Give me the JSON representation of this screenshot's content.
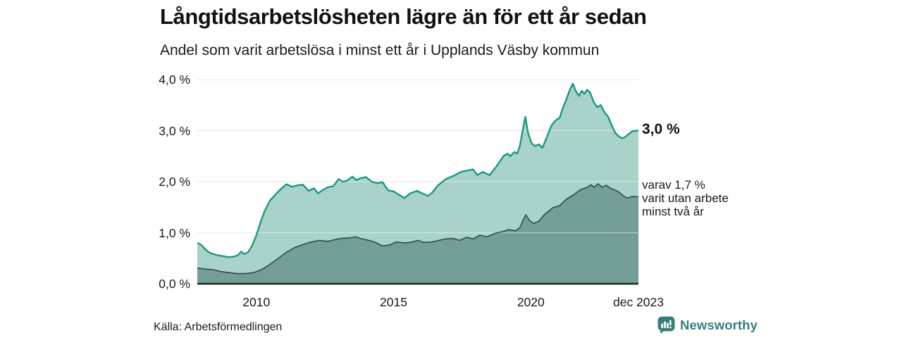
{
  "header": {
    "title": "Långtidsarbetslösheten lägre än för ett år sedan",
    "subtitle": "Andel som varit arbetslösa i minst ett år i Upplands Väsby kommun"
  },
  "footer": {
    "source": "Källa: Arbetsförmedlingen",
    "brand": "Newsworthy",
    "brand_color": "#35807a"
  },
  "icons": {
    "newsworthy_logo": "speech-bubble-bar-chart-icon"
  },
  "chart_data": {
    "type": "area",
    "title": "Långtidsarbetslösheten lägre än för ett år sedan",
    "subtitle": "Andel som varit arbetslösa i minst ett år i Upplands Väsby kommun",
    "unit": "%",
    "grid": true,
    "x_axis": {
      "range": [
        2007.85,
        2023.92
      ],
      "ticks": [
        {
          "t": 2010,
          "label": "2010"
        },
        {
          "t": 2015,
          "label": "2015"
        },
        {
          "t": 2020,
          "label": "2020"
        },
        {
          "t": 2023.92,
          "label": "dec 2023"
        }
      ]
    },
    "y_axis": {
      "range": [
        0,
        4
      ],
      "ticks": [
        {
          "v": 0,
          "label": "0,0 %"
        },
        {
          "v": 1,
          "label": "1,0 %"
        },
        {
          "v": 2,
          "label": "2,0 %"
        },
        {
          "v": 3,
          "label": "3,0 %"
        },
        {
          "v": 4,
          "label": "4,0 %"
        }
      ]
    },
    "colors": {
      "grid_under": "#dcdcdc",
      "grid_over": "rgba(255,255,255,0.45)",
      "baseline": "#1d2724"
    },
    "series": [
      {
        "id": "unemployed_min_one_year_total",
        "line_color": "#18997f",
        "fill_color": "#a9d2cb",
        "line_width": 2.4,
        "points": [
          [
            2007.85,
            0.8
          ],
          [
            2008.0,
            0.76
          ],
          [
            2008.17,
            0.66
          ],
          [
            2008.33,
            0.6
          ],
          [
            2008.58,
            0.56
          ],
          [
            2008.83,
            0.54
          ],
          [
            2009.0,
            0.52
          ],
          [
            2009.17,
            0.53
          ],
          [
            2009.33,
            0.56
          ],
          [
            2009.45,
            0.63
          ],
          [
            2009.55,
            0.58
          ],
          [
            2009.7,
            0.62
          ],
          [
            2009.85,
            0.75
          ],
          [
            2010.0,
            0.95
          ],
          [
            2010.15,
            1.2
          ],
          [
            2010.3,
            1.42
          ],
          [
            2010.5,
            1.63
          ],
          [
            2010.7,
            1.75
          ],
          [
            2010.9,
            1.86
          ],
          [
            2011.1,
            1.95
          ],
          [
            2011.3,
            1.9
          ],
          [
            2011.5,
            1.93
          ],
          [
            2011.7,
            1.94
          ],
          [
            2011.9,
            1.82
          ],
          [
            2012.1,
            1.87
          ],
          [
            2012.25,
            1.77
          ],
          [
            2012.4,
            1.83
          ],
          [
            2012.6,
            1.89
          ],
          [
            2012.8,
            1.91
          ],
          [
            2013.0,
            2.05
          ],
          [
            2013.15,
            2.0
          ],
          [
            2013.3,
            2.02
          ],
          [
            2013.5,
            2.1
          ],
          [
            2013.65,
            2.03
          ],
          [
            2013.8,
            2.07
          ],
          [
            2014.0,
            2.09
          ],
          [
            2014.2,
            2.0
          ],
          [
            2014.4,
            1.97
          ],
          [
            2014.6,
            1.99
          ],
          [
            2014.8,
            1.83
          ],
          [
            2015.0,
            1.81
          ],
          [
            2015.2,
            1.74
          ],
          [
            2015.4,
            1.68
          ],
          [
            2015.6,
            1.77
          ],
          [
            2015.85,
            1.82
          ],
          [
            2016.05,
            1.77
          ],
          [
            2016.25,
            1.72
          ],
          [
            2016.4,
            1.78
          ],
          [
            2016.6,
            1.92
          ],
          [
            2016.9,
            2.05
          ],
          [
            2017.2,
            2.12
          ],
          [
            2017.45,
            2.19
          ],
          [
            2017.7,
            2.22
          ],
          [
            2017.9,
            2.24
          ],
          [
            2018.05,
            2.13
          ],
          [
            2018.25,
            2.19
          ],
          [
            2018.5,
            2.13
          ],
          [
            2018.75,
            2.3
          ],
          [
            2019.0,
            2.5
          ],
          [
            2019.15,
            2.55
          ],
          [
            2019.25,
            2.5
          ],
          [
            2019.4,
            2.58
          ],
          [
            2019.5,
            2.55
          ],
          [
            2019.6,
            2.7
          ],
          [
            2019.72,
            3.05
          ],
          [
            2019.8,
            3.27
          ],
          [
            2019.9,
            2.95
          ],
          [
            2020.03,
            2.75
          ],
          [
            2020.15,
            2.7
          ],
          [
            2020.3,
            2.73
          ],
          [
            2020.42,
            2.66
          ],
          [
            2020.6,
            2.9
          ],
          [
            2020.75,
            3.1
          ],
          [
            2020.9,
            3.2
          ],
          [
            2021.05,
            3.25
          ],
          [
            2021.15,
            3.42
          ],
          [
            2021.3,
            3.62
          ],
          [
            2021.42,
            3.8
          ],
          [
            2021.53,
            3.92
          ],
          [
            2021.63,
            3.78
          ],
          [
            2021.75,
            3.68
          ],
          [
            2021.85,
            3.78
          ],
          [
            2021.95,
            3.72
          ],
          [
            2022.05,
            3.8
          ],
          [
            2022.15,
            3.75
          ],
          [
            2022.3,
            3.55
          ],
          [
            2022.42,
            3.46
          ],
          [
            2022.55,
            3.5
          ],
          [
            2022.68,
            3.36
          ],
          [
            2022.82,
            3.27
          ],
          [
            2022.95,
            3.1
          ],
          [
            2023.08,
            2.95
          ],
          [
            2023.2,
            2.89
          ],
          [
            2023.33,
            2.85
          ],
          [
            2023.45,
            2.88
          ],
          [
            2023.58,
            2.94
          ],
          [
            2023.7,
            2.99
          ],
          [
            2023.92,
            3.0
          ]
        ]
      },
      {
        "id": "unemployed_min_two_years",
        "line_color": "#2b443e",
        "fill_color": "#739e98",
        "line_width": 1.5,
        "points": [
          [
            2007.85,
            0.31
          ],
          [
            2008.1,
            0.29
          ],
          [
            2008.4,
            0.28
          ],
          [
            2008.7,
            0.24
          ],
          [
            2009.0,
            0.22
          ],
          [
            2009.3,
            0.2
          ],
          [
            2009.6,
            0.2
          ],
          [
            2009.9,
            0.22
          ],
          [
            2010.2,
            0.28
          ],
          [
            2010.5,
            0.38
          ],
          [
            2010.8,
            0.5
          ],
          [
            2011.1,
            0.62
          ],
          [
            2011.4,
            0.71
          ],
          [
            2011.7,
            0.77
          ],
          [
            2012.0,
            0.82
          ],
          [
            2012.3,
            0.85
          ],
          [
            2012.6,
            0.83
          ],
          [
            2012.9,
            0.87
          ],
          [
            2013.1,
            0.89
          ],
          [
            2013.4,
            0.9
          ],
          [
            2013.6,
            0.92
          ],
          [
            2013.85,
            0.88
          ],
          [
            2014.1,
            0.85
          ],
          [
            2014.35,
            0.81
          ],
          [
            2014.6,
            0.74
          ],
          [
            2014.85,
            0.76
          ],
          [
            2015.1,
            0.82
          ],
          [
            2015.4,
            0.8
          ],
          [
            2015.6,
            0.81
          ],
          [
            2015.9,
            0.85
          ],
          [
            2016.1,
            0.81
          ],
          [
            2016.4,
            0.82
          ],
          [
            2016.65,
            0.85
          ],
          [
            2016.9,
            0.88
          ],
          [
            2017.15,
            0.89
          ],
          [
            2017.4,
            0.85
          ],
          [
            2017.65,
            0.91
          ],
          [
            2017.9,
            0.88
          ],
          [
            2018.15,
            0.95
          ],
          [
            2018.4,
            0.92
          ],
          [
            2018.7,
            0.99
          ],
          [
            2018.95,
            1.02
          ],
          [
            2019.2,
            1.06
          ],
          [
            2019.45,
            1.04
          ],
          [
            2019.6,
            1.1
          ],
          [
            2019.72,
            1.25
          ],
          [
            2019.82,
            1.35
          ],
          [
            2019.95,
            1.24
          ],
          [
            2020.1,
            1.18
          ],
          [
            2020.3,
            1.23
          ],
          [
            2020.5,
            1.36
          ],
          [
            2020.8,
            1.49
          ],
          [
            2021.05,
            1.53
          ],
          [
            2021.3,
            1.66
          ],
          [
            2021.55,
            1.74
          ],
          [
            2021.8,
            1.84
          ],
          [
            2022.05,
            1.89
          ],
          [
            2022.2,
            1.94
          ],
          [
            2022.3,
            1.89
          ],
          [
            2022.45,
            1.96
          ],
          [
            2022.6,
            1.89
          ],
          [
            2022.75,
            1.93
          ],
          [
            2022.9,
            1.87
          ],
          [
            2023.05,
            1.84
          ],
          [
            2023.2,
            1.8
          ],
          [
            2023.35,
            1.73
          ],
          [
            2023.5,
            1.68
          ],
          [
            2023.7,
            1.71
          ],
          [
            2023.92,
            1.7
          ]
        ]
      }
    ],
    "annotations": {
      "latest_total": "3,0 %",
      "detail_lines": [
        "varav 1,7 %",
        "varit utan arbete",
        "minst två år"
      ]
    }
  }
}
